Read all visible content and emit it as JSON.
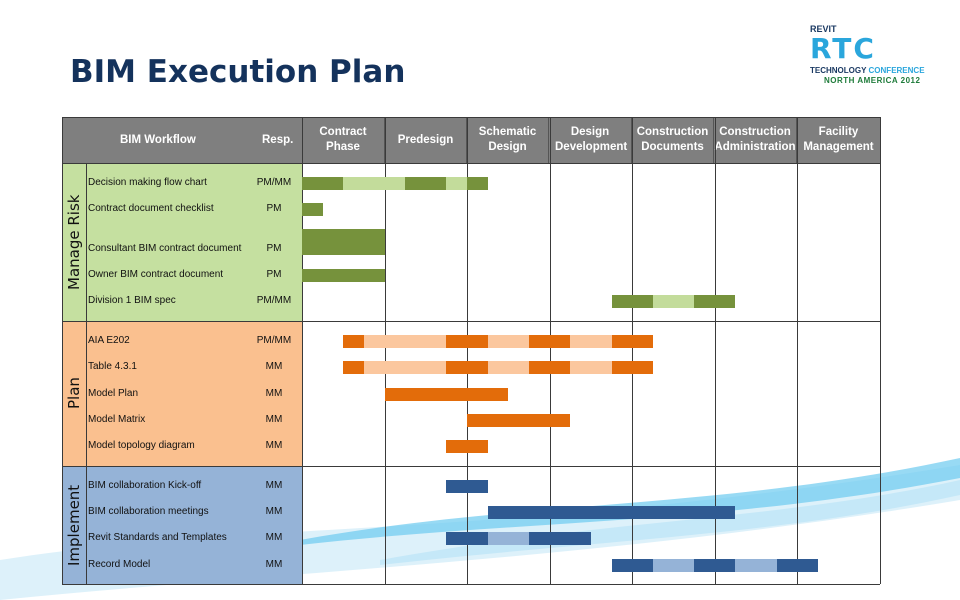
{
  "title": "BIM Execution Plan",
  "logo": {
    "line1": "REVIT",
    "line2": "RTC",
    "line3a": "TECHNOLOGY ",
    "line3b": "CONFERENCE",
    "line4": "NORTH AMERICA 2012"
  },
  "header": {
    "workflow": "BIM Workflow",
    "resp": "Resp.",
    "phases": [
      "Contract Phase",
      "Predesign",
      "Schematic Design",
      "Design Development",
      "Construction Documents",
      "Construction Administration",
      "Facility Management"
    ]
  },
  "colors": {
    "green_dark": "#76923c",
    "green_light": "#c3dc9b",
    "green_bg": "#c5e0a0",
    "orange_dark": "#e36c0a",
    "orange_light": "#fbc79e",
    "orange_bg": "#fac08f",
    "blue_dark": "#2f5a92",
    "blue_light": "#95b3d7",
    "blue_bg": "#95b3d7",
    "header_bg": "#7f7f7f"
  },
  "chart_data": {
    "type": "gantt",
    "title": "BIM Execution Plan",
    "phases": [
      "Contract Phase",
      "Predesign",
      "Schematic Design",
      "Design Development",
      "Construction Documents",
      "Construction Administration",
      "Facility Management"
    ],
    "phase_units": "bar positions in phase-column units (0 = start of Contract Phase, 7 = end of Facility Management); segments: dark = active, light = intermittent",
    "sections": [
      {
        "name": "Manage Risk",
        "rows": [
          {
            "task": "Decision making flow chart",
            "resp": "PM/MM",
            "segments": [
              {
                "start": 0,
                "end": 0.5,
                "shade": "dark"
              },
              {
                "start": 0.5,
                "end": 1.25,
                "shade": "light"
              },
              {
                "start": 1.25,
                "end": 1.75,
                "shade": "dark"
              },
              {
                "start": 1.75,
                "end": 2.0,
                "shade": "light"
              },
              {
                "start": 2.0,
                "end": 2.25,
                "shade": "dark"
              }
            ]
          },
          {
            "task": "Contract document  checklist",
            "resp": "PM",
            "segments": [
              {
                "start": 0,
                "end": 0.25,
                "shade": "dark"
              }
            ]
          },
          {
            "task": "Consultant BIM contract document",
            "resp": "PM",
            "segments": [
              {
                "start": 0,
                "end": 1.0,
                "shade": "dark"
              }
            ]
          },
          {
            "task": "Owner BIM contract document",
            "resp": "PM",
            "segments": [
              {
                "start": 0,
                "end": 1.0,
                "shade": "dark"
              }
            ]
          },
          {
            "task": "Division 1 BIM spec",
            "resp": "PM/MM",
            "segments": [
              {
                "start": 3.75,
                "end": 4.25,
                "shade": "dark"
              },
              {
                "start": 4.25,
                "end": 4.75,
                "shade": "light"
              },
              {
                "start": 4.75,
                "end": 5.25,
                "shade": "dark"
              }
            ]
          }
        ]
      },
      {
        "name": "Plan",
        "rows": [
          {
            "task": "AIA E202",
            "resp": "PM/MM",
            "segments": [
              {
                "start": 0.5,
                "end": 0.75,
                "shade": "dark"
              },
              {
                "start": 0.75,
                "end": 1.75,
                "shade": "light"
              },
              {
                "start": 1.75,
                "end": 2.25,
                "shade": "dark"
              },
              {
                "start": 2.25,
                "end": 2.75,
                "shade": "light"
              },
              {
                "start": 2.75,
                "end": 3.25,
                "shade": "dark"
              },
              {
                "start": 3.25,
                "end": 3.75,
                "shade": "light"
              },
              {
                "start": 3.75,
                "end": 4.25,
                "shade": "dark"
              }
            ]
          },
          {
            "task": "Table 4.3.1",
            "resp": "MM",
            "segments": [
              {
                "start": 0.5,
                "end": 0.75,
                "shade": "dark"
              },
              {
                "start": 0.75,
                "end": 1.75,
                "shade": "light"
              },
              {
                "start": 1.75,
                "end": 2.25,
                "shade": "dark"
              },
              {
                "start": 2.25,
                "end": 2.75,
                "shade": "light"
              },
              {
                "start": 2.75,
                "end": 3.25,
                "shade": "dark"
              },
              {
                "start": 3.25,
                "end": 3.75,
                "shade": "light"
              },
              {
                "start": 3.75,
                "end": 4.25,
                "shade": "dark"
              }
            ]
          },
          {
            "task": "Model Plan",
            "resp": "MM",
            "segments": [
              {
                "start": 1.0,
                "end": 2.5,
                "shade": "dark"
              }
            ]
          },
          {
            "task": "Model Matrix",
            "resp": "MM",
            "segments": [
              {
                "start": 2.0,
                "end": 3.25,
                "shade": "dark"
              }
            ]
          },
          {
            "task": "Model topology diagram",
            "resp": "MM",
            "segments": [
              {
                "start": 1.75,
                "end": 2.25,
                "shade": "dark"
              }
            ]
          }
        ]
      },
      {
        "name": "Implement",
        "rows": [
          {
            "task": "BIM collaboration Kick-off",
            "resp": "MM",
            "segments": [
              {
                "start": 1.75,
                "end": 2.25,
                "shade": "dark"
              }
            ]
          },
          {
            "task": "BIM collaboration meetings",
            "resp": "MM",
            "segments": [
              {
                "start": 2.25,
                "end": 5.25,
                "shade": "dark"
              }
            ]
          },
          {
            "task": "Revit Standards and Templates",
            "resp": "MM",
            "segments": [
              {
                "start": 1.75,
                "end": 2.25,
                "shade": "dark"
              },
              {
                "start": 2.25,
                "end": 2.75,
                "shade": "light"
              },
              {
                "start": 2.75,
                "end": 3.5,
                "shade": "dark"
              }
            ]
          },
          {
            "task": "Record Model",
            "resp": "MM",
            "segments": [
              {
                "start": 3.75,
                "end": 4.25,
                "shade": "dark"
              },
              {
                "start": 4.25,
                "end": 4.75,
                "shade": "light"
              },
              {
                "start": 4.75,
                "end": 5.25,
                "shade": "dark"
              },
              {
                "start": 5.25,
                "end": 5.75,
                "shade": "light"
              },
              {
                "start": 5.75,
                "end": 6.25,
                "shade": "dark"
              }
            ]
          }
        ]
      }
    ]
  }
}
